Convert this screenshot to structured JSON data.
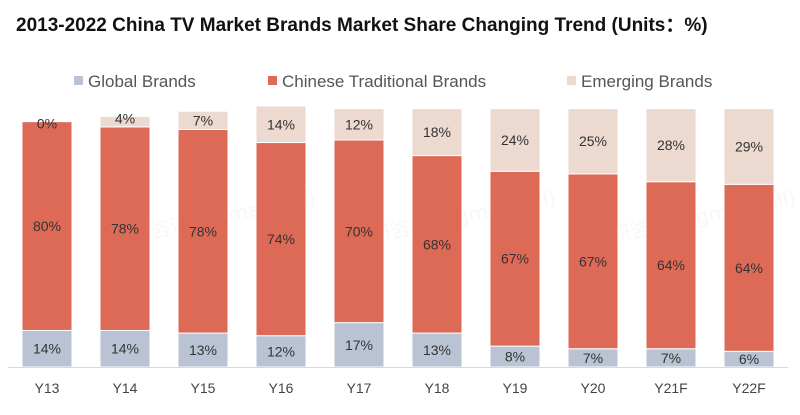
{
  "chart_data": {
    "type": "bar",
    "stacked": true,
    "title": "2013-2022 China TV Market Brands Market Share Changing Trend (Units：%)",
    "categories": [
      "Y13",
      "Y14",
      "Y15",
      "Y16",
      "Y17",
      "Y18",
      "Y19",
      "Y20",
      "Y21F",
      "Y22F"
    ],
    "series": [
      {
        "name": "Global Brands",
        "color": "#b9c3d3",
        "values": [
          14,
          14,
          13,
          12,
          17,
          13,
          8,
          7,
          7,
          6
        ]
      },
      {
        "name": "Chinese Traditional Brands",
        "color": "#dd6a57",
        "values": [
          80,
          78,
          78,
          74,
          70,
          68,
          67,
          67,
          64,
          64
        ]
      },
      {
        "name": "Emerging Brands",
        "color": "#ecd9cf",
        "values": [
          0,
          4,
          7,
          14,
          12,
          18,
          24,
          25,
          28,
          29
        ]
      }
    ],
    "value_suffix": "%",
    "ylim": [
      0,
      100
    ],
    "legend": "top",
    "grid": false,
    "xlabel": "",
    "ylabel": "",
    "watermark": "智研咨询 (figmaintell)"
  }
}
